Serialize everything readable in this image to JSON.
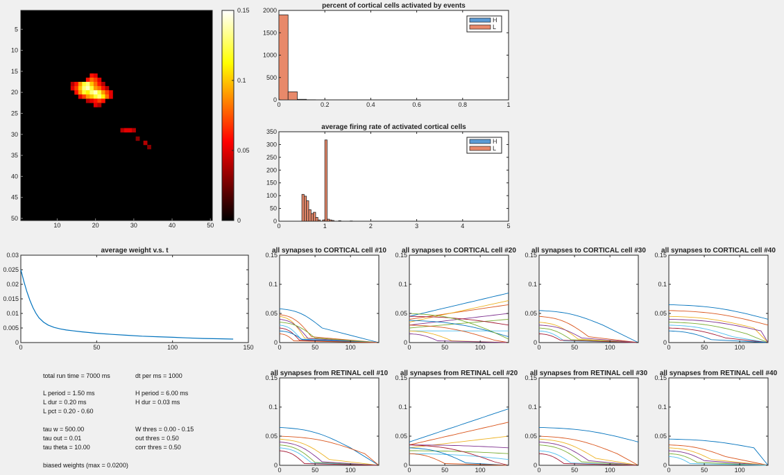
{
  "colors": {
    "figure_bg": "#f0f0f0",
    "hist_H": "#5b9bd5",
    "hist_L": "#e8896a",
    "weight_line": "#0072bd"
  },
  "chart_data": [
    {
      "id": "heatmap",
      "type": "heatmap",
      "colormap": "hot",
      "clim": [
        0,
        0.15
      ],
      "y_ticks": [
        "5",
        "10",
        "15",
        "20",
        "25",
        "30",
        "35",
        "40",
        "45",
        "50"
      ],
      "x_ticks": [
        "10",
        "20",
        "30",
        "40",
        "50"
      ],
      "colorbar_ticks": [
        "0",
        "0.05",
        "0.1",
        "0.15"
      ],
      "cells": [
        [
          16,
          19,
          0.06
        ],
        [
          16,
          20,
          0.05
        ],
        [
          17,
          18,
          0.06
        ],
        [
          17,
          19,
          0.08
        ],
        [
          17,
          20,
          0.07
        ],
        [
          17,
          21,
          0.05
        ],
        [
          18,
          14,
          0.04
        ],
        [
          18,
          15,
          0.06
        ],
        [
          18,
          16,
          0.09
        ],
        [
          18,
          17,
          0.12
        ],
        [
          18,
          18,
          0.13
        ],
        [
          18,
          19,
          0.1
        ],
        [
          18,
          20,
          0.08
        ],
        [
          18,
          21,
          0.06
        ],
        [
          18,
          22,
          0.04
        ],
        [
          19,
          14,
          0.05
        ],
        [
          19,
          15,
          0.07
        ],
        [
          19,
          16,
          0.1
        ],
        [
          19,
          17,
          0.13
        ],
        [
          19,
          18,
          0.14
        ],
        [
          19,
          19,
          0.12
        ],
        [
          19,
          20,
          0.09
        ],
        [
          19,
          21,
          0.08
        ],
        [
          19,
          22,
          0.06
        ],
        [
          19,
          23,
          0.04
        ],
        [
          20,
          15,
          0.06
        ],
        [
          20,
          16,
          0.09
        ],
        [
          20,
          17,
          0.12
        ],
        [
          20,
          18,
          0.11
        ],
        [
          20,
          19,
          0.13
        ],
        [
          20,
          20,
          0.14
        ],
        [
          20,
          21,
          0.12
        ],
        [
          20,
          22,
          0.09
        ],
        [
          20,
          23,
          0.07
        ],
        [
          20,
          24,
          0.05
        ],
        [
          21,
          16,
          0.05
        ],
        [
          21,
          17,
          0.07
        ],
        [
          21,
          18,
          0.09
        ],
        [
          21,
          19,
          0.1
        ],
        [
          21,
          20,
          0.12
        ],
        [
          21,
          21,
          0.13
        ],
        [
          21,
          22,
          0.11
        ],
        [
          21,
          23,
          0.08
        ],
        [
          21,
          24,
          0.05
        ],
        [
          22,
          18,
          0.04
        ],
        [
          22,
          19,
          0.05
        ],
        [
          22,
          20,
          0.06
        ],
        [
          22,
          21,
          0.07
        ],
        [
          22,
          22,
          0.06
        ],
        [
          23,
          20,
          0.05
        ],
        [
          23,
          21,
          0.04
        ],
        [
          29,
          27,
          0.04
        ],
        [
          29,
          28,
          0.05
        ],
        [
          29,
          29,
          0.05
        ],
        [
          29,
          30,
          0.04
        ],
        [
          31,
          31,
          0.03
        ],
        [
          32,
          33,
          0.04
        ],
        [
          33,
          34,
          0.03
        ]
      ]
    },
    {
      "id": "hist1",
      "type": "bar",
      "title": "percent of cortical cells activated by events",
      "legend": [
        "H",
        "L"
      ],
      "xlim": [
        0,
        1
      ],
      "ylim": [
        0,
        2000
      ],
      "x_ticks": [
        "0",
        "0.2",
        "0.4",
        "0.6",
        "0.8",
        "1"
      ],
      "y_ticks": [
        "0",
        "500",
        "1000",
        "1500",
        "2000"
      ],
      "bin_width": 0.04,
      "bin_starts": [
        0,
        0.04,
        0.08,
        0.12
      ],
      "series": [
        {
          "name": "H",
          "values": [
            0,
            0,
            0,
            0
          ]
        },
        {
          "name": "L",
          "values": [
            1900,
            180,
            12,
            3
          ]
        }
      ]
    },
    {
      "id": "hist2",
      "type": "bar",
      "title": "average firing rate of activated cortical cells",
      "legend": [
        "H",
        "L"
      ],
      "xlim": [
        0,
        5
      ],
      "ylim": [
        0,
        350
      ],
      "x_ticks": [
        "0",
        "1",
        "2",
        "3",
        "4",
        "5"
      ],
      "y_ticks": [
        "0",
        "50",
        "100",
        "150",
        "200",
        "250",
        "300",
        "350"
      ],
      "bin_width": 0.05,
      "bin_starts": [
        0.5,
        0.55,
        0.6,
        0.65,
        0.7,
        0.75,
        0.8,
        0.85,
        0.95,
        1.0,
        1.05,
        1.1,
        1.15,
        1.3,
        1.55
      ],
      "series": [
        {
          "name": "H",
          "values": [
            0,
            0,
            0,
            0,
            0,
            0,
            0,
            0,
            0,
            0,
            0,
            0,
            0,
            0,
            0
          ]
        },
        {
          "name": "L",
          "values": [
            105,
            98,
            80,
            45,
            30,
            35,
            15,
            5,
            5,
            318,
            8,
            5,
            3,
            2,
            1
          ]
        }
      ]
    },
    {
      "id": "avgw",
      "type": "line",
      "title": "average weight v.s. t",
      "xlim": [
        0,
        150
      ],
      "ylim": [
        0,
        0.03
      ],
      "x_ticks": [
        "0",
        "50",
        "100",
        "150"
      ],
      "y_ticks": [
        "0",
        "0.005",
        "0.01",
        "0.015",
        "0.02",
        "0.025",
        "0.03"
      ],
      "x": [
        0,
        2,
        4,
        6,
        8,
        10,
        12,
        15,
        18,
        22,
        26,
        30,
        35,
        40,
        50,
        60,
        70,
        80,
        90,
        100,
        110,
        120,
        130,
        140
      ],
      "values": [
        0.025,
        0.021,
        0.0175,
        0.0145,
        0.012,
        0.01,
        0.0085,
        0.007,
        0.006,
        0.0052,
        0.0047,
        0.0043,
        0.004,
        0.0037,
        0.0032,
        0.0028,
        0.0025,
        0.0022,
        0.002,
        0.0018,
        0.0016,
        0.0014,
        0.0013,
        0.0012
      ]
    }
  ],
  "small_panels": {
    "xlim": [
      0,
      140
    ],
    "ylim": [
      0,
      0.15
    ],
    "x_ticks": [
      "0",
      "50",
      "100"
    ],
    "y_ticks": [
      "0",
      "0.05",
      "0.1",
      "0.15"
    ],
    "titles": [
      "all synapses to CORTICAL cell #10",
      "all synapses to CORTICAL cell #20",
      "all synapses to CORTICAL cell #30",
      "all synapses to CORTICAL cell #40",
      "all synapses from RETINAL cell #10",
      "all synapses from RETINAL cell #20",
      "all synapses from RETINAL cell #30",
      "all synapses from RETINAL cell #40"
    ],
    "line_colors": [
      "#0072bd",
      "#d95319",
      "#edb120",
      "#7e2f8e",
      "#77ac30",
      "#4dbeee",
      "#a2142f"
    ],
    "series": [
      [
        [
          0.058,
          0.025,
          60
        ],
        [
          0.048,
          0.01,
          45
        ],
        [
          0.045,
          0.008,
          35
        ],
        [
          0.04,
          0.007,
          40
        ],
        [
          0.035,
          0.008,
          50
        ],
        [
          0.03,
          0.006,
          30
        ],
        [
          0.025,
          0.004,
          28
        ],
        [
          0.02,
          0.005,
          32
        ],
        [
          0.015,
          0.003,
          20
        ]
      ],
      [
        [
          0.045,
          0.085,
          140
        ],
        [
          0.04,
          0.065,
          140
        ],
        [
          0.035,
          0.072,
          140
        ],
        [
          0.03,
          0.05,
          140
        ],
        [
          0.025,
          0.04,
          140
        ],
        [
          0.02,
          0.02,
          140
        ],
        [
          0.045,
          0.03,
          140
        ],
        [
          0.038,
          0.01,
          140
        ],
        [
          0.03,
          0.004,
          120
        ],
        [
          0.02,
          0.003,
          60
        ],
        [
          0.015,
          0.003,
          40
        ],
        [
          0.05,
          0.006,
          140
        ]
      ],
      [
        [
          0.055,
          0.03,
          90
        ],
        [
          0.045,
          0.01,
          70
        ],
        [
          0.035,
          0.006,
          55
        ],
        [
          0.03,
          0.008,
          60
        ],
        [
          0.025,
          0.005,
          45
        ],
        [
          0.02,
          0.003,
          35
        ],
        [
          0.015,
          0.004,
          30
        ]
      ],
      [
        [
          0.065,
          0.04,
          140
        ],
        [
          0.055,
          0.03,
          140
        ],
        [
          0.045,
          0.025,
          120
        ],
        [
          0.04,
          0.02,
          130
        ],
        [
          0.035,
          0.015,
          110
        ],
        [
          0.03,
          0.01,
          90
        ],
        [
          0.025,
          0.008,
          80
        ],
        [
          0.02,
          0.005,
          60
        ]
      ],
      [
        [
          0.065,
          0.03,
          100
        ],
        [
          0.05,
          0.02,
          120
        ],
        [
          0.045,
          0.01,
          70
        ],
        [
          0.04,
          0.006,
          60
        ],
        [
          0.035,
          0.005,
          50
        ],
        [
          0.03,
          0.004,
          45
        ],
        [
          0.025,
          0.003,
          35
        ]
      ],
      [
        [
          0.04,
          0.097,
          140
        ],
        [
          0.035,
          0.074,
          140
        ],
        [
          0.03,
          0.05,
          140
        ],
        [
          0.035,
          0.03,
          140
        ],
        [
          0.025,
          0.02,
          140
        ],
        [
          0.02,
          0.01,
          140
        ],
        [
          0.035,
          0.006,
          120
        ],
        [
          0.03,
          0.004,
          80
        ],
        [
          0.02,
          0.003,
          50
        ]
      ],
      [
        [
          0.065,
          0.04,
          140
        ],
        [
          0.05,
          0.02,
          110
        ],
        [
          0.045,
          0.012,
          80
        ],
        [
          0.04,
          0.008,
          70
        ],
        [
          0.035,
          0.006,
          60
        ],
        [
          0.025,
          0.004,
          45
        ],
        [
          0.02,
          0.003,
          35
        ]
      ],
      [
        [
          0.045,
          0.03,
          120
        ],
        [
          0.035,
          0.015,
          80
        ],
        [
          0.03,
          0.01,
          60
        ],
        [
          0.025,
          0.008,
          50
        ],
        [
          0.02,
          0.005,
          40
        ],
        [
          0.015,
          0.003,
          30
        ]
      ]
    ]
  },
  "params": {
    "total_run_time": "total run time = 7000 ms",
    "dt_per_ms": "dt per ms = 1000",
    "l_period": "L period = 1.50 ms",
    "h_period": "H period = 6.00 ms",
    "l_dur": "L dur = 0.20 ms",
    "h_dur": "H dur = 0.03 ms",
    "l_pct": "L pct = 0.20 - 0.60",
    "tau_w": "tau w = 500.00",
    "w_thres": "W thres = 0.00 - 0.15",
    "tau_out": "tau out = 0.01",
    "out_thres": "out thres = 0.50",
    "tau_theta": "tau theta = 10.00",
    "corr_thres": "corr thres = 0.50",
    "biased": "biased weights (max = 0.0200)"
  }
}
